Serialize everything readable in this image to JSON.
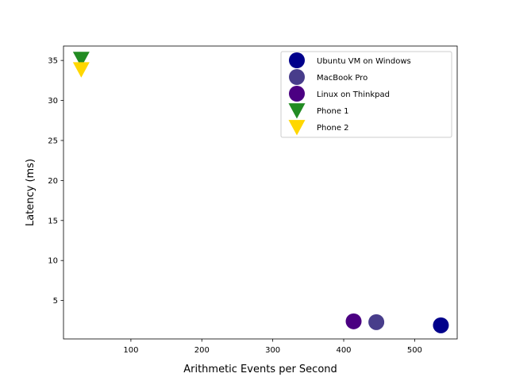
{
  "chart_data": {
    "type": "scatter",
    "title": "",
    "xlabel": "Arithmetic Events per Second",
    "ylabel": "Latency (ms)",
    "xlim": [
      5,
      560
    ],
    "ylim": [
      0.2,
      36.8
    ],
    "xticks": [
      100,
      200,
      300,
      400,
      500
    ],
    "yticks": [
      5,
      10,
      15,
      20,
      25,
      30,
      35
    ],
    "grid": false,
    "legend_position": "upper-right",
    "series": [
      {
        "name": "Ubuntu VM on Windows",
        "marker": "circle",
        "color": "#00008b",
        "points": [
          {
            "x": 537,
            "y": 1.9
          }
        ]
      },
      {
        "name": "MacBook Pro",
        "marker": "circle",
        "color": "#483d8b",
        "points": [
          {
            "x": 446,
            "y": 2.3
          }
        ]
      },
      {
        "name": "Linux on Thinkpad",
        "marker": "circle",
        "color": "#4b0082",
        "points": [
          {
            "x": 414,
            "y": 2.4
          }
        ]
      },
      {
        "name": "Phone 1",
        "marker": "triangle-down",
        "color": "#228b22",
        "points": [
          {
            "x": 30,
            "y": 35.2
          }
        ]
      },
      {
        "name": "Phone 2",
        "marker": "triangle-down",
        "color": "#ffd700",
        "points": [
          {
            "x": 30,
            "y": 33.9
          }
        ]
      }
    ]
  }
}
